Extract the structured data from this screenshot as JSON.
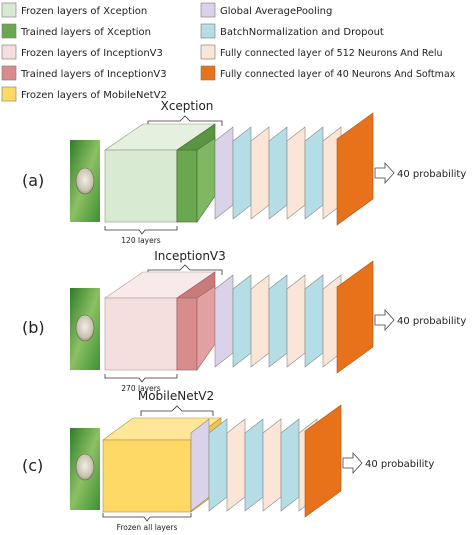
{
  "legend": [
    {
      "id": "frozen-xception",
      "label": "Frozen layers of Xception",
      "color": "#d9ead3"
    },
    {
      "id": "trained-xception",
      "label": "Trained layers of Xception",
      "color": "#6aa84f"
    },
    {
      "id": "frozen-inception",
      "label": "Frozen layers of InceptionV3",
      "color": "#f4dede"
    },
    {
      "id": "trained-inception",
      "label": "Trained layers of InceptionV3",
      "color": "#d98c8c"
    },
    {
      "id": "frozen-mobilenet",
      "label": "Frozen layers of MobileNetV2",
      "color": "#ffd966"
    },
    {
      "id": "global-avg-pool",
      "label": "Global AveragePooling",
      "color": "#d9d2e9"
    },
    {
      "id": "batchnorm-dropout",
      "label": "BatchNormalization and Dropout",
      "color": "#b4dde6"
    },
    {
      "id": "fc-512-relu",
      "label": "Fully connected layer of 512 Neurons And Relu",
      "color": "#fbe5d6"
    },
    {
      "id": "fc-40-softmax",
      "label": "Fully connected layer of 40 Neurons And Softmax",
      "color": "#e8711c"
    }
  ],
  "panels": [
    {
      "id": "a",
      "label": "(a)",
      "model": "Xception",
      "layers_note": "120 layers",
      "output": "40 probability"
    },
    {
      "id": "b",
      "label": "(b)",
      "model": "InceptionV3",
      "layers_note": "270 layers",
      "output": "40 probability"
    },
    {
      "id": "c",
      "label": "(c)",
      "model": "MobileNetV2",
      "layers_note": "Frozen all layers",
      "output": "40 probability"
    }
  ]
}
